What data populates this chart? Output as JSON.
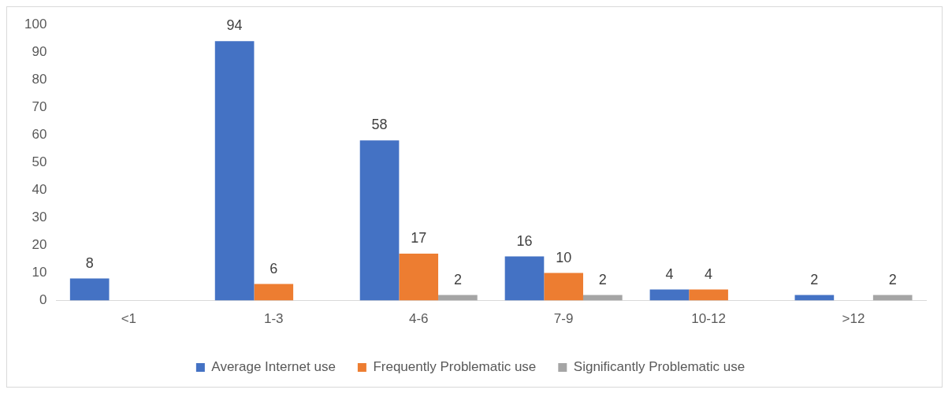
{
  "chart_data": {
    "type": "bar",
    "categories": [
      "<1",
      "1-3",
      "4-6",
      "7-9",
      "10-12",
      ">12"
    ],
    "series": [
      {
        "name": "Average Internet use",
        "color": "#4472c4",
        "values": [
          8,
          94,
          58,
          16,
          4,
          2
        ]
      },
      {
        "name": "Frequently Problematic use",
        "color": "#ed7d31",
        "values": [
          null,
          6,
          17,
          10,
          4,
          null
        ]
      },
      {
        "name": "Significantly Problematic use",
        "color": "#a5a5a5",
        "values": [
          null,
          null,
          2,
          2,
          null,
          2
        ]
      }
    ],
    "ylim": [
      0,
      100
    ],
    "yticks": [
      0,
      10,
      20,
      30,
      40,
      50,
      60,
      70,
      80,
      90,
      100
    ],
    "grid": false,
    "legend": "bottom",
    "data_labels": true
  }
}
